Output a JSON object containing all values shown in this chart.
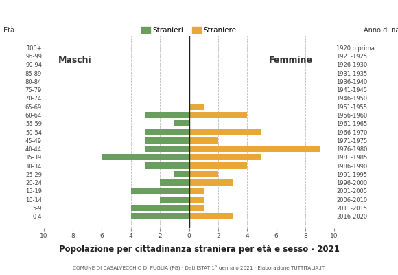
{
  "age_groups": [
    "0-4",
    "5-9",
    "10-14",
    "15-19",
    "20-24",
    "25-29",
    "30-34",
    "35-39",
    "40-44",
    "45-49",
    "50-54",
    "55-59",
    "60-64",
    "65-69",
    "70-74",
    "75-79",
    "80-84",
    "85-89",
    "90-94",
    "95-99",
    "100+"
  ],
  "birth_years": [
    "2016-2020",
    "2011-2015",
    "2006-2010",
    "2001-2005",
    "1996-2000",
    "1991-1995",
    "1986-1990",
    "1981-1985",
    "1976-1980",
    "1971-1975",
    "1966-1970",
    "1961-1965",
    "1956-1960",
    "1951-1955",
    "1946-1950",
    "1941-1945",
    "1936-1940",
    "1931-1935",
    "1926-1930",
    "1921-1925",
    "1920 o prima"
  ],
  "males": [
    4,
    4,
    2,
    4,
    2,
    1,
    3,
    6,
    3,
    3,
    3,
    1,
    3,
    0,
    0,
    0,
    0,
    0,
    0,
    0,
    0
  ],
  "females": [
    3,
    1,
    1,
    1,
    3,
    2,
    4,
    5,
    9,
    2,
    5,
    0,
    4,
    1,
    0,
    0,
    0,
    0,
    0,
    0,
    0
  ],
  "male_color": "#6a9e5e",
  "female_color": "#e8a838",
  "title": "Popolazione per cittadinanza straniera per età e sesso - 2021",
  "subtitle": "COMUNE DI CASALVECCHIO DI PUGLIA (FG) · Dati ISTAT 1° gennaio 2021 · Elaborazione TUTTITALIA.IT",
  "legend_male": "Stranieri",
  "legend_female": "Straniere",
  "label_maschi": "Maschi",
  "label_femmine": "Femmine",
  "label_eta": "Età",
  "label_anno": "Anno di nascita",
  "background_color": "#ffffff",
  "grid_color": "#bbbbbb",
  "axis_line_color": "#222222"
}
